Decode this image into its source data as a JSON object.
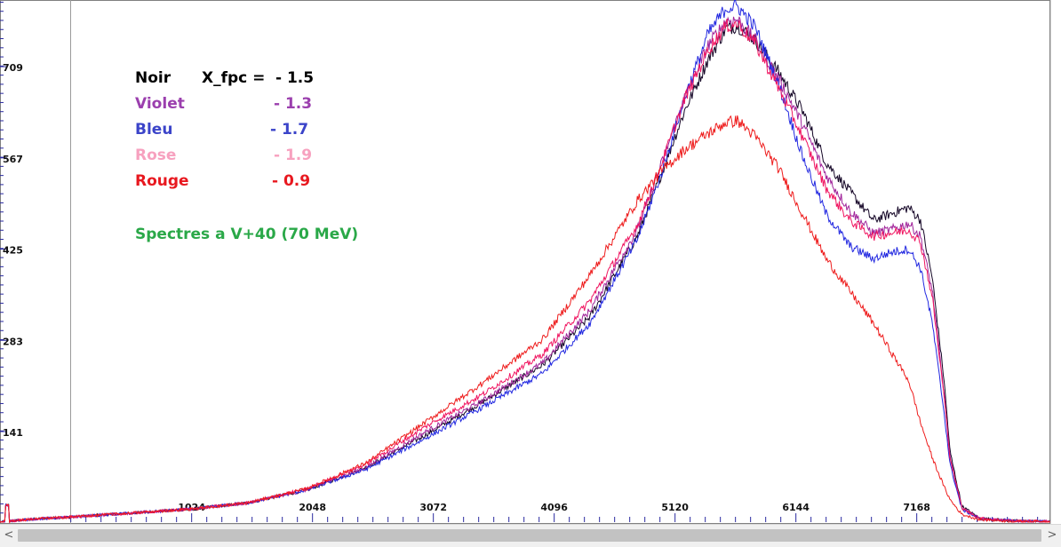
{
  "chart_data": {
    "type": "line",
    "title": "",
    "xlabel": "",
    "ylabel": "",
    "xlim": [
      -600,
      8300
    ],
    "ylim": [
      0,
      810
    ],
    "x_ticks": [
      1024,
      2048,
      3072,
      4096,
      5120,
      6144,
      7168
    ],
    "y_ticks": [
      141,
      283,
      425,
      567,
      709
    ],
    "legend": {
      "header_label": "Noir",
      "header_param": "X_fpc =",
      "entries": [
        {
          "label": "Noir",
          "value": "- 1.5",
          "color": "#000000"
        },
        {
          "label": "Violet",
          "value": "- 1.3",
          "color": "#9b3fae"
        },
        {
          "label": "Bleu",
          "value": "- 1.7",
          "color": "#3b44c9"
        },
        {
          "label": "Rose",
          "value": "- 1.9",
          "color": "#f7a1bf"
        },
        {
          "label": "Rouge",
          "value": "- 0.9",
          "color": "#e8181f"
        }
      ]
    },
    "annotation": {
      "text": "Spectres a V+40   (70 MeV)",
      "color": "#2aa848"
    },
    "series": [
      {
        "name": "Noir",
        "color": "#140526",
        "points": [
          [
            -600,
            0
          ],
          [
            -500,
            2
          ],
          [
            -300,
            5
          ],
          [
            0,
            8
          ],
          [
            500,
            14
          ],
          [
            1000,
            20
          ],
          [
            1500,
            30
          ],
          [
            2000,
            50
          ],
          [
            2500,
            85
          ],
          [
            3000,
            135
          ],
          [
            3500,
            188
          ],
          [
            4000,
            245
          ],
          [
            4400,
            320
          ],
          [
            4800,
            445
          ],
          [
            5000,
            540
          ],
          [
            5200,
            640
          ],
          [
            5400,
            720
          ],
          [
            5550,
            768
          ],
          [
            5650,
            773
          ],
          [
            5800,
            750
          ],
          [
            6000,
            700
          ],
          [
            6200,
            640
          ],
          [
            6400,
            560
          ],
          [
            6600,
            515
          ],
          [
            6800,
            470
          ],
          [
            6950,
            480
          ],
          [
            7100,
            490
          ],
          [
            7200,
            470
          ],
          [
            7300,
            380
          ],
          [
            7400,
            220
          ],
          [
            7450,
            110
          ],
          [
            7550,
            25
          ],
          [
            7700,
            6
          ],
          [
            8000,
            2
          ],
          [
            8300,
            1
          ]
        ]
      },
      {
        "name": "Violet",
        "color": "#a0249a",
        "points": [
          [
            -600,
            0
          ],
          [
            -500,
            2
          ],
          [
            -300,
            5
          ],
          [
            0,
            8
          ],
          [
            500,
            14
          ],
          [
            1000,
            20
          ],
          [
            1500,
            30
          ],
          [
            2000,
            50
          ],
          [
            2500,
            85
          ],
          [
            3000,
            140
          ],
          [
            3500,
            190
          ],
          [
            4000,
            248
          ],
          [
            4400,
            330
          ],
          [
            4800,
            455
          ],
          [
            5000,
            555
          ],
          [
            5200,
            660
          ],
          [
            5400,
            742
          ],
          [
            5550,
            780
          ],
          [
            5650,
            782
          ],
          [
            5800,
            750
          ],
          [
            6000,
            690
          ],
          [
            6200,
            620
          ],
          [
            6400,
            540
          ],
          [
            6600,
            485
          ],
          [
            6800,
            450
          ],
          [
            6950,
            455
          ],
          [
            7100,
            465
          ],
          [
            7200,
            445
          ],
          [
            7300,
            360
          ],
          [
            7400,
            200
          ],
          [
            7450,
            100
          ],
          [
            7550,
            22
          ],
          [
            7700,
            6
          ],
          [
            8000,
            2
          ],
          [
            8300,
            1
          ]
        ]
      },
      {
        "name": "Bleu",
        "color": "#2228e0",
        "points": [
          [
            -600,
            0
          ],
          [
            -500,
            2
          ],
          [
            -300,
            5
          ],
          [
            0,
            8
          ],
          [
            500,
            14
          ],
          [
            1000,
            20
          ],
          [
            1500,
            30
          ],
          [
            2000,
            50
          ],
          [
            2500,
            82
          ],
          [
            3000,
            130
          ],
          [
            3500,
            180
          ],
          [
            4000,
            232
          ],
          [
            4400,
            310
          ],
          [
            4800,
            440
          ],
          [
            5000,
            540
          ],
          [
            5200,
            660
          ],
          [
            5400,
            760
          ],
          [
            5550,
            800
          ],
          [
            5650,
            803
          ],
          [
            5800,
            770
          ],
          [
            6000,
            680
          ],
          [
            6200,
            570
          ],
          [
            6400,
            480
          ],
          [
            6600,
            430
          ],
          [
            6800,
            410
          ],
          [
            6950,
            420
          ],
          [
            7100,
            425
          ],
          [
            7200,
            395
          ],
          [
            7300,
            310
          ],
          [
            7400,
            170
          ],
          [
            7450,
            90
          ],
          [
            7550,
            20
          ],
          [
            7700,
            5
          ],
          [
            8000,
            2
          ],
          [
            8300,
            1
          ]
        ]
      },
      {
        "name": "Rose",
        "color": "#f01460",
        "points": [
          [
            -600,
            0
          ],
          [
            -500,
            2
          ],
          [
            -300,
            5
          ],
          [
            0,
            8
          ],
          [
            500,
            14
          ],
          [
            1000,
            20
          ],
          [
            1500,
            30
          ],
          [
            2000,
            52
          ],
          [
            2500,
            90
          ],
          [
            3000,
            148
          ],
          [
            3500,
            200
          ],
          [
            4000,
            262
          ],
          [
            4400,
            345
          ],
          [
            4800,
            462
          ],
          [
            5000,
            555
          ],
          [
            5200,
            658
          ],
          [
            5400,
            735
          ],
          [
            5550,
            772
          ],
          [
            5650,
            776
          ],
          [
            5800,
            745
          ],
          [
            6000,
            675
          ],
          [
            6200,
            600
          ],
          [
            6400,
            520
          ],
          [
            6600,
            470
          ],
          [
            6800,
            445
          ],
          [
            6950,
            450
          ],
          [
            7100,
            455
          ],
          [
            7200,
            435
          ],
          [
            7300,
            350
          ],
          [
            7400,
            195
          ],
          [
            7450,
            100
          ],
          [
            7550,
            22
          ],
          [
            7700,
            6
          ],
          [
            8000,
            2
          ],
          [
            8300,
            1
          ]
        ]
      },
      {
        "name": "Rouge",
        "color": "#ee1c1c",
        "points": [
          [
            -600,
            0
          ],
          [
            -500,
            2
          ],
          [
            -300,
            5
          ],
          [
            0,
            8
          ],
          [
            500,
            14
          ],
          [
            1000,
            20
          ],
          [
            1500,
            30
          ],
          [
            2000,
            52
          ],
          [
            2500,
            92
          ],
          [
            3000,
            155
          ],
          [
            3500,
            218
          ],
          [
            4000,
            285
          ],
          [
            4400,
            385
          ],
          [
            4800,
            500
          ],
          [
            5000,
            545
          ],
          [
            5200,
            580
          ],
          [
            5400,
            605
          ],
          [
            5550,
            622
          ],
          [
            5650,
            625
          ],
          [
            5800,
            600
          ],
          [
            6000,
            550
          ],
          [
            6200,
            480
          ],
          [
            6400,
            410
          ],
          [
            6600,
            360
          ],
          [
            6800,
            310
          ],
          [
            6950,
            265
          ],
          [
            7100,
            220
          ],
          [
            7200,
            155
          ],
          [
            7300,
            100
          ],
          [
            7400,
            55
          ],
          [
            7450,
            35
          ],
          [
            7550,
            12
          ],
          [
            7700,
            4
          ],
          [
            8000,
            1
          ],
          [
            8300,
            1
          ]
        ]
      }
    ]
  }
}
